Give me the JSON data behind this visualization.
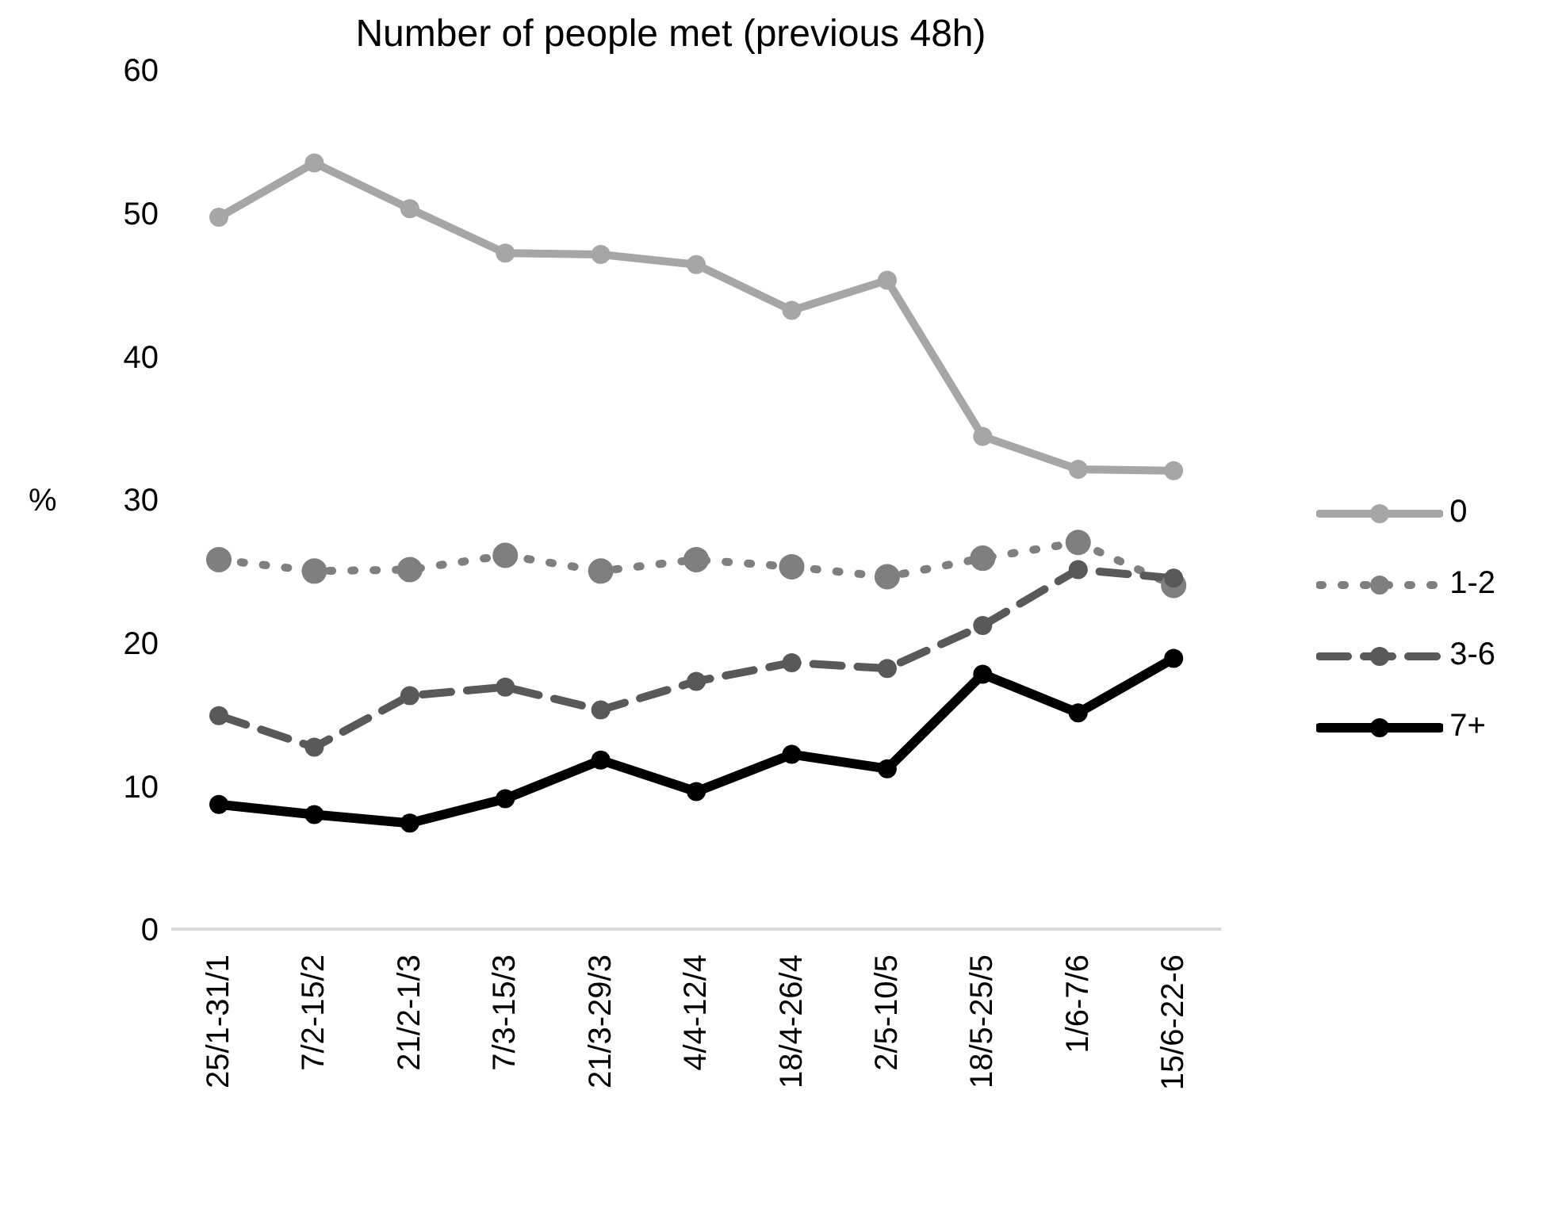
{
  "chart_data": {
    "type": "line",
    "title": "Number of people met (previous 48h)",
    "ylabel": "%",
    "categories": [
      "25/1-31/1",
      "7/2-15/2",
      "21/2-1/3",
      "7/3-15/3",
      "21/3-29/3",
      "4/4-12/4",
      "18/4-26/4",
      "2/5-10/5",
      "18/5-25/5",
      "1/6-7/6",
      "15/6-22-6"
    ],
    "series": [
      {
        "name": "0",
        "color": "#a6a6a6",
        "line_style": "solid",
        "values": [
          49.7,
          53.5,
          50.3,
          47.2,
          47.1,
          46.4,
          43.2,
          45.3,
          34.4,
          32.1,
          32.0
        ]
      },
      {
        "name": "1-2",
        "color": "#7f7f7f",
        "line_style": "dotted",
        "values": [
          25.8,
          25.0,
          25.1,
          26.1,
          25.0,
          25.8,
          25.3,
          24.6,
          25.9,
          27.0,
          24.0
        ]
      },
      {
        "name": "3-6",
        "color": "#595959",
        "line_style": "dashed",
        "values": [
          14.9,
          12.7,
          16.3,
          16.9,
          15.3,
          17.3,
          18.6,
          18.2,
          21.2,
          25.1,
          24.5
        ]
      },
      {
        "name": "7+",
        "color": "#000000",
        "line_style": "solid",
        "values": [
          8.7,
          8.0,
          7.4,
          9.1,
          11.8,
          9.6,
          12.2,
          11.2,
          17.8,
          15.1,
          18.9
        ]
      }
    ],
    "ylim": [
      0,
      60
    ],
    "yticks": [
      0,
      10,
      20,
      30,
      40,
      50,
      60
    ],
    "grid": false,
    "legend": "right",
    "marker": "circle"
  }
}
